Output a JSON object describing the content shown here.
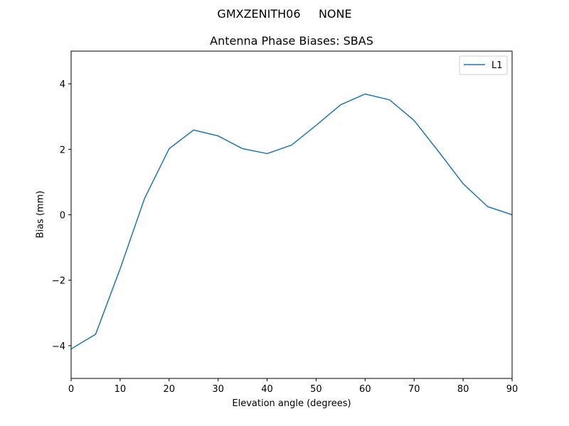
{
  "figure": {
    "suptitle": "GMXZENITH06     NONE",
    "title": "Antenna Phase Biases: SBAS",
    "xlabel": "Elevation angle (degrees)",
    "ylabel": "Bias (mm)",
    "line_color": "#1f77b4"
  },
  "legend": {
    "entries": [
      {
        "label": "L1",
        "color": "#1f77b4"
      }
    ],
    "position": "upper right"
  },
  "chart_data": {
    "type": "line",
    "title": "Antenna Phase Biases: SBAS",
    "suptitle": "GMXZENITH06     NONE",
    "xlabel": "Elevation angle (degrees)",
    "ylabel": "Bias (mm)",
    "xlim": [
      0,
      90
    ],
    "ylim": [
      -5,
      5
    ],
    "xticks": [
      0,
      10,
      20,
      30,
      40,
      50,
      60,
      70,
      80,
      90
    ],
    "yticks": [
      -4,
      -2,
      0,
      2,
      4
    ],
    "ytick_labels": [
      "−4",
      "−2",
      "0",
      "2",
      "4"
    ],
    "grid": false,
    "legend_position": "upper right",
    "x": [
      0,
      5,
      10,
      15,
      20,
      25,
      30,
      35,
      40,
      45,
      50,
      55,
      60,
      65,
      70,
      75,
      80,
      85,
      90
    ],
    "series": [
      {
        "name": "L1",
        "color": "#1f77b4",
        "values": [
          -4.1,
          -3.65,
          -1.65,
          0.5,
          2.02,
          2.59,
          2.41,
          2.02,
          1.87,
          2.13,
          2.73,
          3.36,
          3.69,
          3.51,
          2.88,
          1.93,
          0.95,
          0.25,
          0.0
        ]
      }
    ]
  }
}
